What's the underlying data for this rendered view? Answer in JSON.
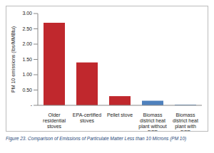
{
  "chart_data": {
    "type": "bar",
    "caption": "Figure 23.  Comparison of Emissions of Particulate Matter Less than 10 Microns (PM 10)",
    "y_label": "PM 10 emissions (lbs/MMBtu)",
    "categories": [
      "Older residential stoves",
      "EPA-certified stoves",
      "Pellet stove",
      "Biomass district heat plant without ESP",
      "Biomass district heat plant with ESP"
    ],
    "values": [
      2.7,
      1.4,
      0.3,
      0.15,
      0.02
    ],
    "colors": [
      "#c0282d",
      "#c0282d",
      "#c0282d",
      "#4f81bd",
      "#4f81bd"
    ],
    "ylim": [
      0,
      3
    ],
    "yticks": [
      {
        "value": 0,
        "label": "-"
      },
      {
        "value": 0.5,
        "label": "0.50"
      },
      {
        "value": 1,
        "label": "1.00"
      },
      {
        "value": 1.5,
        "label": "1.50"
      },
      {
        "value": 2,
        "label": "2.00"
      },
      {
        "value": 2.5,
        "label": "2.50"
      },
      {
        "value": 3,
        "label": "3.00"
      }
    ],
    "grid": false
  }
}
